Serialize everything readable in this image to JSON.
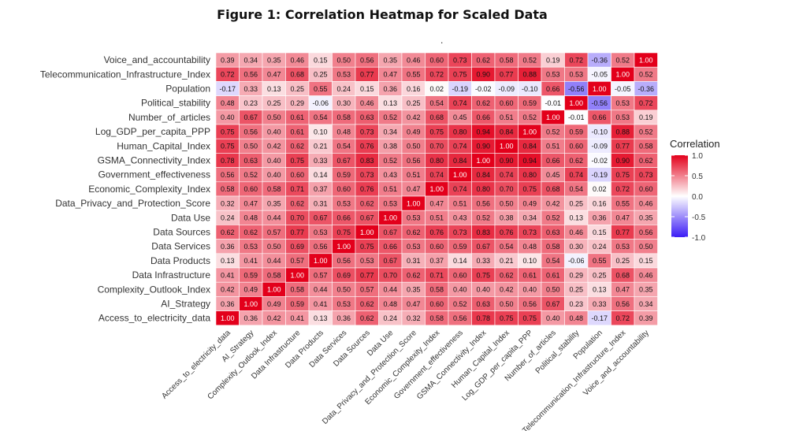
{
  "figure": {
    "title": "Figure 1: Correlation Heatmap for Scaled Data",
    "stray_mark": "."
  },
  "chart_data": {
    "type": "heatmap",
    "title": "Figure 1: Correlation Heatmap for Scaled Data",
    "columns": [
      "Access_to_electricity_data",
      "AI_Strategy",
      "Complexity_Outlook_Index",
      "Data Infrastructure",
      "Data Products",
      "Data Services",
      "Data Sources",
      "Data Use",
      "Data_Privacy_and_Protection_Score",
      "Economic_Complexity_Index",
      "Government_effectiveness",
      "GSMA_Connectivity_Index",
      "Human_Capital_Index",
      "Log_GDP_per_capita_PPP",
      "Number_of_articles",
      "Political_stability",
      "Population",
      "Telecommunication_Infrastructure_Index",
      "Voice_and_accountability"
    ],
    "rows": [
      "Voice_and_accountability",
      "Telecommunication_Infrastructure_Index",
      "Population",
      "Political_stability",
      "Number_of_articles",
      "Log_GDP_per_capita_PPP",
      "Human_Capital_Index",
      "GSMA_Connectivity_Index",
      "Government_effectiveness",
      "Economic_Complexity_Index",
      "Data_Privacy_and_Protection_Score",
      "Data Use",
      "Data Sources",
      "Data Services",
      "Data Products",
      "Data Infrastructure",
      "Complexity_Outlook_Index",
      "AI_Strategy",
      "Access_to_electricity_data"
    ],
    "values": [
      [
        "0.39",
        "0.34",
        "0.35",
        "0.46",
        "0.15",
        "0.50",
        "0.56",
        "0.35",
        "0.46",
        "0.60",
        "0.73",
        "0.62",
        "0.58",
        "0.52",
        "0.19",
        "0.72",
        "-0.36",
        "0.52",
        "1.00"
      ],
      [
        "0.72",
        "0.56",
        "0.47",
        "0.68",
        "0.25",
        "0.53",
        "0.77",
        "0.47",
        "0.55",
        "0.72",
        "0.75",
        "0.90",
        "0.77",
        "0.88",
        "0.53",
        "0.53",
        "-0.05",
        "1.00",
        "0.52"
      ],
      [
        "-0.17",
        "0.33",
        "0.13",
        "0.25",
        "0.55",
        "0.24",
        "0.15",
        "0.36",
        "0.16",
        "0.02",
        "-0.19",
        "-0.02",
        "-0.09",
        "-0.10",
        "0.66",
        "-0.56",
        "1.00",
        "-0.05",
        "-0.36"
      ],
      [
        "0.48",
        "0.23",
        "0.25",
        "0.29",
        "-0.06",
        "0.30",
        "0.46",
        "0.13",
        "0.25",
        "0.54",
        "0.74",
        "0.62",
        "0.60",
        "0.59",
        "-0.01",
        "1.00",
        "-0.56",
        "0.53",
        "0.72"
      ],
      [
        "0.40",
        "0.67",
        "0.50",
        "0.61",
        "0.54",
        "0.58",
        "0.63",
        "0.52",
        "0.42",
        "0.68",
        "0.45",
        "0.66",
        "0.51",
        "0.52",
        "1.00",
        "-0.01",
        "0.66",
        "0.53",
        "0.19"
      ],
      [
        "0.75",
        "0.56",
        "0.40",
        "0.61",
        "0.10",
        "0.48",
        "0.73",
        "0.34",
        "0.49",
        "0.75",
        "0.80",
        "0.94",
        "0.84",
        "1.00",
        "0.52",
        "0.59",
        "-0.10",
        "0.88",
        "0.52"
      ],
      [
        "0.75",
        "0.50",
        "0.42",
        "0.62",
        "0.21",
        "0.54",
        "0.76",
        "0.38",
        "0.50",
        "0.70",
        "0.74",
        "0.90",
        "1.00",
        "0.84",
        "0.51",
        "0.60",
        "-0.09",
        "0.77",
        "0.58"
      ],
      [
        "0.78",
        "0.63",
        "0.40",
        "0.75",
        "0.33",
        "0.67",
        "0.83",
        "0.52",
        "0.56",
        "0.80",
        "0.84",
        "1.00",
        "0.90",
        "0.94",
        "0.66",
        "0.62",
        "-0.02",
        "0.90",
        "0.62"
      ],
      [
        "0.56",
        "0.52",
        "0.40",
        "0.60",
        "0.14",
        "0.59",
        "0.73",
        "0.43",
        "0.51",
        "0.74",
        "1.00",
        "0.84",
        "0.74",
        "0.80",
        "0.45",
        "0.74",
        "-0.19",
        "0.75",
        "0.73"
      ],
      [
        "0.58",
        "0.60",
        "0.58",
        "0.71",
        "0.37",
        "0.60",
        "0.76",
        "0.51",
        "0.47",
        "1.00",
        "0.74",
        "0.80",
        "0.70",
        "0.75",
        "0.68",
        "0.54",
        "0.02",
        "0.72",
        "0.60"
      ],
      [
        "0.32",
        "0.47",
        "0.35",
        "0.62",
        "0.31",
        "0.53",
        "0.62",
        "0.53",
        "1.00",
        "0.47",
        "0.51",
        "0.56",
        "0.50",
        "0.49",
        "0.42",
        "0.25",
        "0.16",
        "0.55",
        "0.46"
      ],
      [
        "0.24",
        "0.48",
        "0.44",
        "0.70",
        "0.67",
        "0.66",
        "0.67",
        "1.00",
        "0.53",
        "0.51",
        "0.43",
        "0.52",
        "0.38",
        "0.34",
        "0.52",
        "0.13",
        "0.36",
        "0.47",
        "0.35"
      ],
      [
        "0.62",
        "0.62",
        "0.57",
        "0.77",
        "0.53",
        "0.75",
        "1.00",
        "0.67",
        "0.62",
        "0.76",
        "0.73",
        "0.83",
        "0.76",
        "0.73",
        "0.63",
        "0.46",
        "0.15",
        "0.77",
        "0.56"
      ],
      [
        "0.36",
        "0.53",
        "0.50",
        "0.69",
        "0.56",
        "1.00",
        "0.75",
        "0.66",
        "0.53",
        "0.60",
        "0.59",
        "0.67",
        "0.54",
        "0.48",
        "0.58",
        "0.30",
        "0.24",
        "0.53",
        "0.50"
      ],
      [
        "0.13",
        "0.41",
        "0.44",
        "0.57",
        "1.00",
        "0.56",
        "0.53",
        "0.67",
        "0.31",
        "0.37",
        "0.14",
        "0.33",
        "0.21",
        "0.10",
        "0.54",
        "-0.06",
        "0.55",
        "0.25",
        "0.15"
      ],
      [
        "0.41",
        "0.59",
        "0.58",
        "1.00",
        "0.57",
        "0.69",
        "0.77",
        "0.70",
        "0.62",
        "0.71",
        "0.60",
        "0.75",
        "0.62",
        "0.61",
        "0.61",
        "0.29",
        "0.25",
        "0.68",
        "0.46"
      ],
      [
        "0.42",
        "0.49",
        "1.00",
        "0.58",
        "0.44",
        "0.50",
        "0.57",
        "0.44",
        "0.35",
        "0.58",
        "0.40",
        "0.40",
        "0.42",
        "0.40",
        "0.50",
        "0.25",
        "0.13",
        "0.47",
        "0.35"
      ],
      [
        "0.36",
        "1.00",
        "0.49",
        "0.59",
        "0.41",
        "0.53",
        "0.62",
        "0.48",
        "0.47",
        "0.60",
        "0.52",
        "0.63",
        "0.50",
        "0.56",
        "0.67",
        "0.23",
        "0.33",
        "0.56",
        "0.34"
      ],
      [
        "1.00",
        "0.36",
        "0.42",
        "0.41",
        "0.13",
        "0.36",
        "0.62",
        "0.24",
        "0.32",
        "0.58",
        "0.56",
        "0.78",
        "0.75",
        "0.75",
        "0.40",
        "0.48",
        "-0.17",
        "0.72",
        "0.39"
      ]
    ],
    "legend": {
      "title": "Correlation",
      "ticks": [
        "1.0",
        "0.5",
        "0.0",
        "-0.5",
        "-1.0"
      ],
      "tick_values": [
        1.0,
        0.5,
        0.0,
        -0.5,
        -1.0
      ],
      "range": [
        -1,
        1
      ],
      "colors": {
        "low": "#3b1cf5",
        "mid": "#ffffff",
        "high": "#e3001b"
      }
    }
  }
}
